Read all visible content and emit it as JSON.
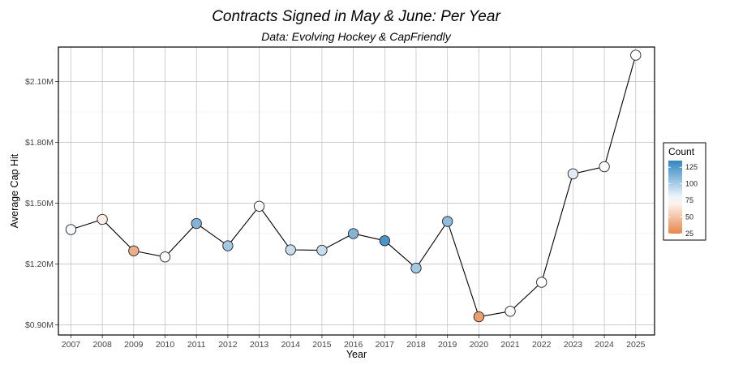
{
  "chart_data": {
    "type": "scatter",
    "title": "Contracts Signed in May & June: Per Year",
    "subtitle": "Data: Evolving Hockey & CapFriendly",
    "xlabel": "Year",
    "ylabel": "Average Cap Hit",
    "x": [
      2007,
      2008,
      2009,
      2010,
      2011,
      2012,
      2013,
      2014,
      2015,
      2016,
      2017,
      2018,
      2019,
      2020,
      2021,
      2022,
      2023,
      2024,
      2025
    ],
    "series": [
      {
        "values": [
          1.37,
          1.42,
          1.265,
          1.235,
          1.4,
          1.29,
          1.485,
          1.27,
          1.268,
          1.35,
          1.315,
          1.18,
          1.41,
          0.94,
          0.967,
          1.11,
          1.645,
          1.68,
          2.23
        ],
        "count": [
          78,
          68,
          42,
          78,
          112,
          102,
          78,
          92,
          92,
          112,
          128,
          102,
          108,
          35,
          74,
          76,
          84,
          76,
          75
        ]
      }
    ],
    "ylim": [
      0.85,
      2.27
    ],
    "xlim": [
      2006.6,
      2025.6
    ],
    "y_ticks": [
      0.9,
      1.2,
      1.5,
      1.8,
      2.1
    ],
    "y_tick_labels": [
      "$0.90M",
      "$1.20M",
      "$1.50M",
      "$1.80M",
      "$2.10M"
    ],
    "grid": true,
    "legend": {
      "title": "Count",
      "placement": "right",
      "range": [
        25,
        135
      ],
      "breaks": [
        125,
        100,
        75,
        50,
        25
      ],
      "colors": {
        "low": "#e8854a",
        "mid": "#ffffff",
        "high": "#3186c2"
      },
      "midpoint": 75
    }
  }
}
